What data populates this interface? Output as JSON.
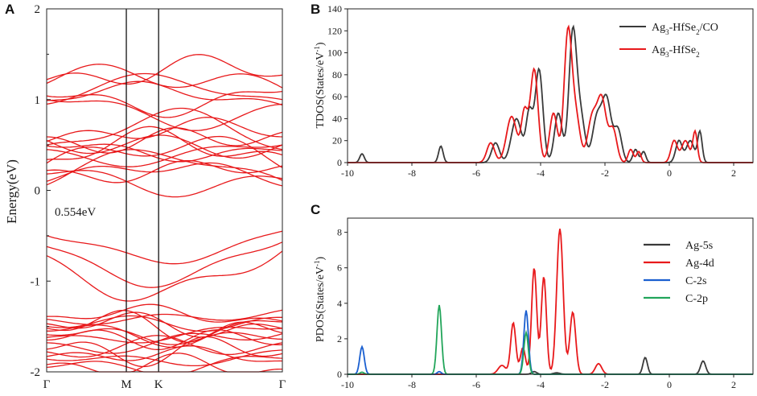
{
  "chart_data": [
    {
      "panel": "A",
      "type": "line",
      "title": "",
      "ylabel": "Energy(eV)",
      "xlabel": "",
      "ylim": [
        -2,
        2
      ],
      "yticks": [
        "2",
        "1",
        "0",
        "-1",
        "-2"
      ],
      "kpath": [
        "Γ",
        "M",
        "K",
        "Γ"
      ],
      "kpath_positions": [
        0,
        0.338,
        0.475,
        1
      ],
      "gap_label": "0.554eV",
      "line_color": "#e8191b",
      "conduction_band_edges_at_gamma": [
        0.06,
        0.18,
        0.3,
        0.45,
        0.5,
        0.55,
        0.95,
        1.0,
        1.18
      ],
      "valence_band_edges_at_gamma": [
        -0.5,
        -0.62,
        -0.72,
        -1.42,
        -1.5,
        -1.55,
        -1.62,
        -1.68,
        -1.78,
        -1.86,
        -1.95
      ]
    },
    {
      "panel": "B",
      "type": "line",
      "ylabel": "TDOS(States/eV-1)",
      "xlabel": "",
      "xlim": [
        -10,
        2.6
      ],
      "ylim": [
        0,
        140
      ],
      "xticks": [
        "-10",
        "-8",
        "-6",
        "-4",
        "-2",
        "0",
        "2"
      ],
      "yticks": [
        "0",
        "20",
        "40",
        "60",
        "80",
        "100",
        "120",
        "140"
      ],
      "legend": "top-right",
      "series": [
        {
          "name": "Ag3-HfSe2/CO",
          "name_main": "Ag",
          "name_sub1": "3",
          "name_mid": "-HfSe",
          "name_sub2": "2",
          "name_tail": "/CO",
          "color": "#3a3a3a",
          "peaks": [
            [
              -9.55,
              8,
              0.07
            ],
            [
              -7.1,
              15,
              0.07
            ],
            [
              -5.4,
              18,
              0.12
            ],
            [
              -4.75,
              40,
              0.16
            ],
            [
              -4.35,
              45,
              0.1
            ],
            [
              -4.05,
              85,
              0.12
            ],
            [
              -3.45,
              45,
              0.12
            ],
            [
              -3.0,
              117,
              0.12
            ],
            [
              -2.75,
              40,
              0.13
            ],
            [
              -2.25,
              40,
              0.14
            ],
            [
              -1.95,
              57,
              0.14
            ],
            [
              -1.6,
              30,
              0.12
            ],
            [
              -1.05,
              12,
              0.08
            ],
            [
              -0.8,
              10,
              0.07
            ],
            [
              0.3,
              20,
              0.1
            ],
            [
              0.65,
              20,
              0.12
            ],
            [
              0.95,
              28,
              0.07
            ]
          ]
        },
        {
          "name": "Ag3-HfSe2",
          "name_main": "Ag",
          "name_sub1": "3",
          "name_mid": "-HfSe",
          "name_sub2": "2",
          "name_tail": "",
          "color": "#e8191b",
          "peaks": [
            [
              -5.55,
              18,
              0.12
            ],
            [
              -4.9,
              42,
              0.16
            ],
            [
              -4.5,
              45,
              0.1
            ],
            [
              -4.2,
              85,
              0.12
            ],
            [
              -3.6,
              45,
              0.12
            ],
            [
              -3.15,
              117,
              0.12
            ],
            [
              -2.9,
              40,
              0.13
            ],
            [
              -2.4,
              40,
              0.14
            ],
            [
              -2.1,
              57,
              0.14
            ],
            [
              -1.75,
              30,
              0.12
            ],
            [
              -1.2,
              12,
              0.08
            ],
            [
              -0.95,
              10,
              0.07
            ],
            [
              0.15,
              20,
              0.1
            ],
            [
              0.5,
              20,
              0.12
            ],
            [
              0.8,
              28,
              0.07
            ]
          ]
        }
      ]
    },
    {
      "panel": "C",
      "type": "line",
      "ylabel": "PDOS(States/eV-1)",
      "xlabel": "",
      "xlim": [
        -10,
        2.6
      ],
      "ylim": [
        0,
        8.8
      ],
      "xticks": [
        "-10",
        "-8",
        "-6",
        "-4",
        "-2",
        "0",
        "2"
      ],
      "yticks": [
        "0",
        "2",
        "4",
        "6",
        "8"
      ],
      "legend": "right",
      "series": [
        {
          "name": "Ag-5s",
          "color": "#3a3a3a",
          "peaks": [
            [
              -4.2,
              0.15,
              0.08
            ],
            [
              -0.75,
              0.95,
              0.07
            ],
            [
              1.05,
              0.75,
              0.08
            ],
            [
              -3.5,
              0.08,
              0.1
            ]
          ]
        },
        {
          "name": "Ag-4d",
          "color": "#e8191b",
          "peaks": [
            [
              -4.85,
              2.9,
              0.08
            ],
            [
              -4.55,
              1.5,
              0.08
            ],
            [
              -4.2,
              6.0,
              0.08
            ],
            [
              -3.9,
              5.5,
              0.08
            ],
            [
              -3.4,
              8.2,
              0.1
            ],
            [
              -3.0,
              3.5,
              0.09
            ],
            [
              -2.2,
              0.6,
              0.1
            ],
            [
              -5.2,
              0.5,
              0.12
            ]
          ]
        },
        {
          "name": "C-2s",
          "color": "#1a5fd0",
          "peaks": [
            [
              -9.55,
              1.55,
              0.07
            ],
            [
              -4.45,
              3.6,
              0.07
            ],
            [
              -7.15,
              0.15,
              0.06
            ]
          ]
        },
        {
          "name": "C-2p",
          "color": "#22a55a",
          "peaks": [
            [
              -7.15,
              3.9,
              0.07
            ],
            [
              -4.45,
              2.35,
              0.07
            ],
            [
              -9.55,
              0.12,
              0.06
            ]
          ]
        }
      ]
    }
  ]
}
